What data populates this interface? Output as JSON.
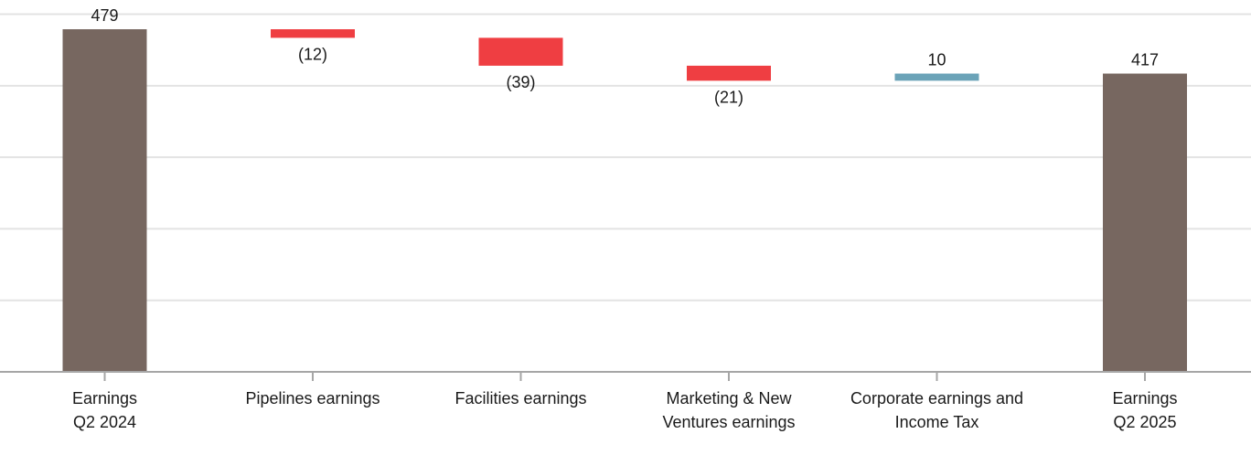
{
  "chart_data": {
    "type": "bar",
    "subtype": "waterfall",
    "title": "",
    "xlabel": "",
    "ylabel": "",
    "ylim": [
      0,
      500
    ],
    "grid": true,
    "legend": "none",
    "categories": [
      [
        "Earnings",
        "Q2 2024"
      ],
      [
        "Pipelines earnings"
      ],
      [
        "Facilities earnings"
      ],
      [
        "Marketing & New",
        "Ventures earnings"
      ],
      [
        "Corporate earnings and",
        "Income Tax"
      ],
      [
        "Earnings",
        "Q2 2025"
      ]
    ],
    "steps": [
      {
        "kind": "total",
        "value": 479,
        "label": "479"
      },
      {
        "kind": "delta",
        "value": -12,
        "label": "(12)"
      },
      {
        "kind": "delta",
        "value": -39,
        "label": "(39)"
      },
      {
        "kind": "delta",
        "value": -21,
        "label": "(21)"
      },
      {
        "kind": "delta",
        "value": 10,
        "label": "10"
      },
      {
        "kind": "total",
        "value": 417,
        "label": "417"
      }
    ],
    "colors": {
      "total": "#776760",
      "decrease": "#ef3e42",
      "increase": "#6ba3b8"
    }
  }
}
